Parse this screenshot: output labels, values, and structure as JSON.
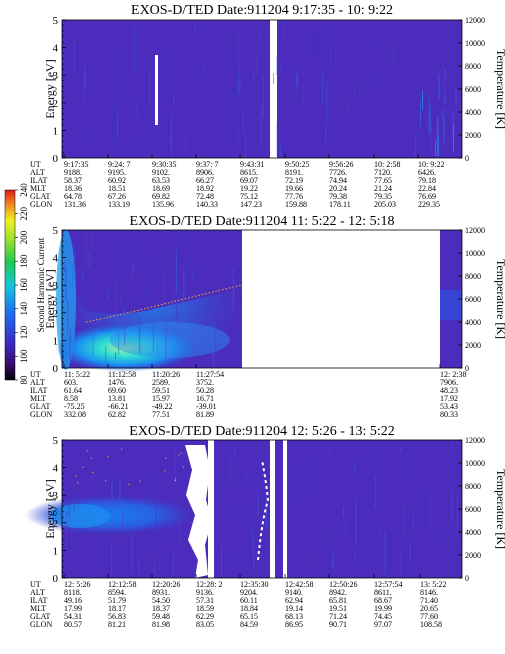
{
  "chart_data": [
    {
      "type": "heatmap",
      "title": "EXOS-D/TED   Date:911204  9:17:35 - 10: 9:22",
      "ylabel": "Energy [eV]",
      "ylabel_right": "Temperature [K]",
      "ylim": [
        0,
        5
      ],
      "ylim_right": [
        0,
        12000
      ],
      "yticks": [
        "0",
        "1",
        "2",
        "3",
        "4",
        "5"
      ],
      "yticks_right": [
        "0",
        "2000",
        "4000",
        "6000",
        "8000",
        "10000",
        "12000"
      ],
      "row_labels": [
        "UT",
        "ALT",
        "ILAT",
        "MLT",
        "GLAT",
        "GLON"
      ],
      "columns": [
        [
          "9:17:35",
          "9188.",
          "58.37",
          "18.36",
          "64.78",
          "131.36"
        ],
        [
          "9:24: 7",
          "9195.",
          "60.92",
          "18.51",
          "67.26",
          "133.19"
        ],
        [
          "9:30:35",
          "9102.",
          "63.53",
          "18.69",
          "69.82",
          "135.96"
        ],
        [
          "9:37: 7",
          "8906.",
          "66.27",
          "18.92",
          "72.48",
          "140.33"
        ],
        [
          "9:43:31",
          "8615.",
          "69.07",
          "19.22",
          "75.12",
          "147.23"
        ],
        [
          "9:50:25",
          "8191.",
          "72.19",
          "19.66",
          "77.76",
          "159.88"
        ],
        [
          "9:56:26",
          "7726.",
          "74.94",
          "20.24",
          "79.38",
          "178.11"
        ],
        [
          "10: 2:58",
          "7120.",
          "77.65",
          "21.24",
          "79.35",
          "205.03"
        ],
        [
          "10: 9:22",
          "6426.",
          "79.18",
          "22.84",
          "76.69",
          "229.35"
        ]
      ]
    },
    {
      "type": "heatmap",
      "title": "EXOS-D/TED   Date:911204  11: 5:22 - 12: 5:18",
      "ylabel": "Energy [eV]",
      "ylabel_right": "Temperature [K]",
      "ylim": [
        0,
        5
      ],
      "ylim_right": [
        0,
        12000
      ],
      "yticks": [
        "0",
        "1",
        "2",
        "3",
        "4",
        "5"
      ],
      "yticks_right": [
        "0",
        "2000",
        "4000",
        "6000",
        "8000",
        "10000",
        "12000"
      ],
      "colorbar": {
        "label": "Second Harmonic Current",
        "range": [
          80,
          240
        ],
        "ticks": [
          "80",
          "100",
          "120",
          "140",
          "160",
          "180",
          "200",
          "220",
          "240"
        ]
      },
      "row_labels": [
        "UT",
        "ALT",
        "ILAT",
        "MLT",
        "GLAT",
        "GLON"
      ],
      "columns": [
        [
          "11: 5:22",
          "603.",
          "61.64",
          "8.58",
          "-75.25",
          "332.08"
        ],
        [
          "11:12:58",
          "1476.",
          "69.60",
          "13.81",
          "-66.21",
          "62.82"
        ],
        [
          "11:20:26",
          "2589.",
          "59.51",
          "15.97",
          "-49.22",
          "77.51"
        ],
        [
          "11:27:54",
          "3752.",
          "50.28",
          "16.71",
          "-39.01",
          "81.89"
        ],
        [
          "12: 2:38",
          "7906.",
          "48.23",
          "17.92",
          "53.43",
          "80.33"
        ]
      ]
    },
    {
      "type": "heatmap",
      "title": "EXOS-D/TED   Date:911204  12: 5:26 - 13: 5:22",
      "ylabel": "Energy [eV]",
      "ylabel_right": "Temperature [K]",
      "ylim": [
        0,
        5
      ],
      "ylim_right": [
        0,
        12000
      ],
      "yticks": [
        "0",
        "1",
        "2",
        "3",
        "4",
        "5"
      ],
      "yticks_right": [
        "0",
        "2000",
        "4000",
        "6000",
        "8000",
        "10000",
        "12000"
      ],
      "row_labels": [
        "UT",
        "ALT",
        "ILAT",
        "MLT",
        "GLAT",
        "GLON"
      ],
      "columns": [
        [
          "12: 5:26",
          "8118.",
          "49.16",
          "17.99",
          "54.31",
          "80.57"
        ],
        [
          "12:12:58",
          "8594.",
          "51.79",
          "18.17",
          "56.83",
          "81.21"
        ],
        [
          "12:20:26",
          "8931.",
          "54.50",
          "18.37",
          "59.48",
          "81.98"
        ],
        [
          "12:28: 2",
          "9136.",
          "57.31",
          "18.59",
          "62.29",
          "83.05"
        ],
        [
          "12:35:30",
          "9204.",
          "60.11",
          "18.84",
          "65.15",
          "84.59"
        ],
        [
          "12:42:58",
          "9140.",
          "62.94",
          "19.14",
          "68.13",
          "86.95"
        ],
        [
          "12:50:26",
          "8942.",
          "65.81",
          "19.51",
          "71.24",
          "90.71"
        ],
        [
          "12:57:54",
          "8611.",
          "68.67",
          "19.99",
          "74.45",
          "97.07"
        ],
        [
          "13: 5:22",
          "8146.",
          "71.40",
          "20.65",
          "77.60",
          "108.58"
        ]
      ]
    }
  ],
  "colors": {
    "background_purple": "#4b2cbc",
    "gap_white": "#ffffff"
  }
}
